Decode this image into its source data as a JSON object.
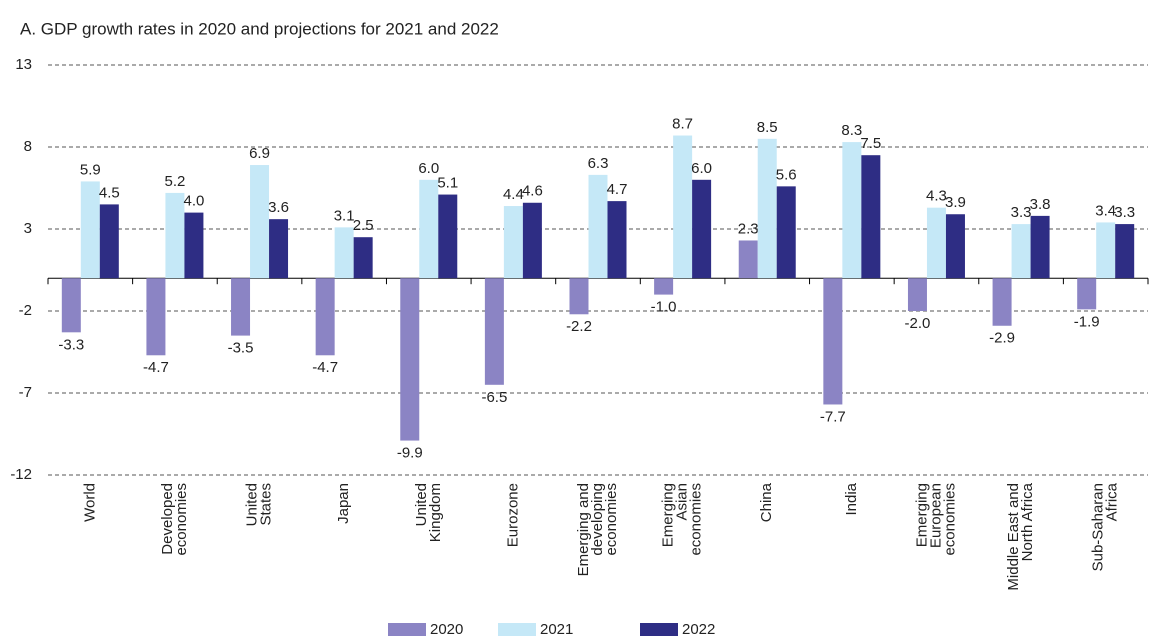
{
  "chart_data": {
    "type": "bar",
    "title": "A. GDP growth rates in 2020 and projections for 2021 and 2022",
    "categories": [
      "World",
      "Developed\neconomies",
      "United\nStates",
      "Japan",
      "United\nKingdom",
      "Eurozone",
      "Emerging and\ndeveloping\neconomies",
      "Emerging\nAsian\neconomies",
      "China",
      "India",
      "Emerging\nEuropean\neconomies",
      "Middle East and\nNorth Africa",
      "Sub-Saharan\nAfrica"
    ],
    "series": [
      {
        "name": "2020",
        "color": "#8b84c4",
        "values": [
          -3.3,
          -4.7,
          -3.5,
          -4.7,
          -9.9,
          -6.5,
          -2.2,
          -1.0,
          2.3,
          -7.7,
          -2.0,
          -2.9,
          -1.9
        ],
        "value_labels": [
          "-3.3",
          "-4.7",
          "-3.5",
          "-4.7",
          "-9.9",
          "-6.5",
          "-2.2",
          "-1.0",
          "2.3",
          "-7.7",
          "-2.0",
          "-2.9",
          "-1.9"
        ]
      },
      {
        "name": "2021",
        "color": "#c5e8f7",
        "values": [
          5.9,
          5.2,
          6.9,
          3.1,
          6.0,
          4.4,
          6.3,
          8.7,
          8.5,
          8.3,
          4.3,
          3.3,
          3.4
        ],
        "value_labels": [
          "5.9",
          "5.2",
          "6.9",
          "3.1",
          "6.0",
          "4.4",
          "6.3",
          "8.7",
          "8.5",
          "8.3",
          "4.3",
          "3.3",
          "3.4"
        ]
      },
      {
        "name": "2022",
        "color": "#2e2d84",
        "values": [
          4.5,
          4.0,
          3.6,
          2.5,
          5.1,
          4.6,
          4.7,
          6.0,
          5.6,
          7.5,
          3.9,
          3.8,
          3.3
        ],
        "value_labels": [
          "4.5",
          "4.0",
          "3.6",
          "2.5",
          "5.1",
          "4.6",
          "4.7",
          "6.0",
          "5.6",
          "7.5",
          "3.9",
          "3.8",
          "3.3"
        ]
      }
    ],
    "ylim": [
      -12,
      13
    ],
    "yticks": [
      13,
      8,
      3,
      -2,
      -7,
      -12
    ],
    "grid": true,
    "legend": "bottom"
  }
}
